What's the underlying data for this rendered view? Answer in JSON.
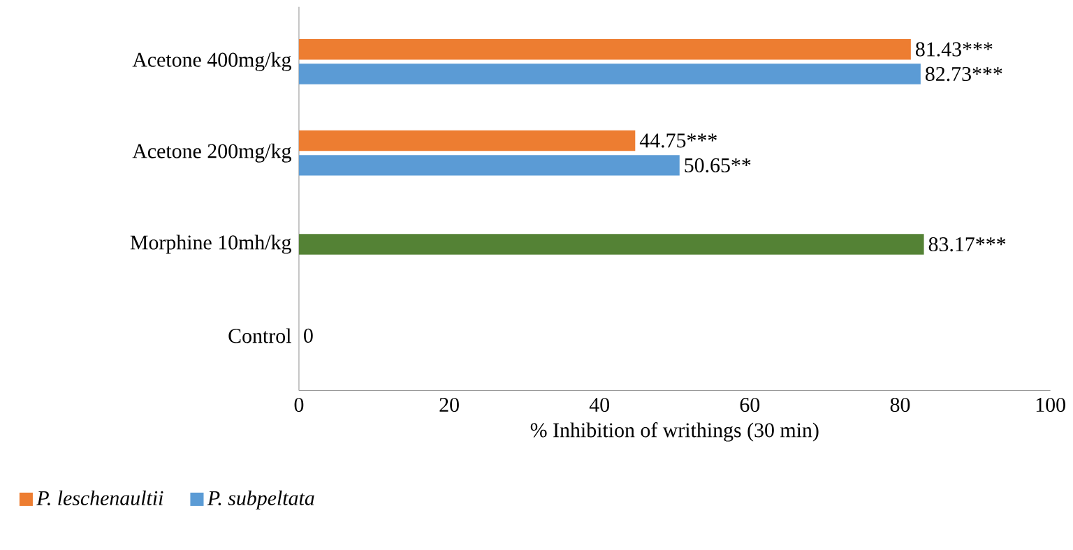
{
  "chart_data": {
    "type": "bar",
    "orientation": "horizontal",
    "categories": [
      "Acetone 400mg/kg",
      "Acetone 200mg/kg",
      "Morphine 10mh/kg",
      "Control"
    ],
    "series": [
      {
        "name": "P. leschenaultii",
        "color": "#ed7d31",
        "values": [
          81.43,
          44.75,
          null,
          null
        ],
        "value_labels": [
          "81.43***",
          "44.75***",
          null,
          null
        ]
      },
      {
        "name": "P. subpeltata",
        "color": "#5b9bd5",
        "values": [
          82.73,
          50.65,
          null,
          null
        ],
        "value_labels": [
          "82.73***",
          "50.65**",
          null,
          null
        ]
      },
      {
        "color": "#548235",
        "values": [
          null,
          null,
          83.17,
          0
        ],
        "value_labels": [
          null,
          null,
          "83.17***",
          "0"
        ]
      }
    ],
    "xlabel": "% Inhibition  of writhings  (30 min)",
    "xlim": [
      0,
      100
    ],
    "xticks": [
      0,
      20,
      40,
      60,
      80,
      100
    ],
    "grid": false,
    "legend": "bottom left"
  }
}
